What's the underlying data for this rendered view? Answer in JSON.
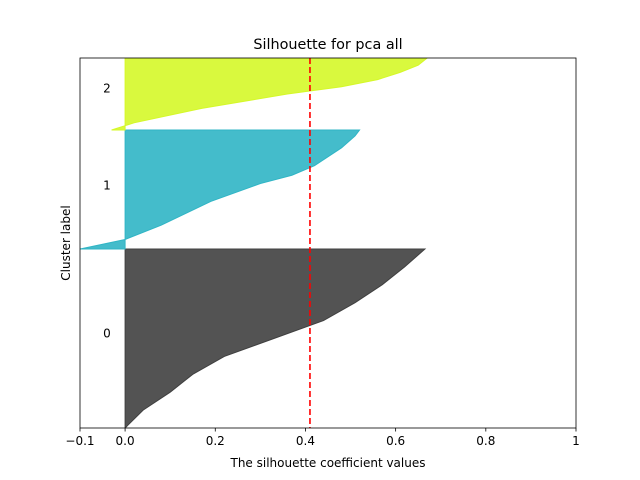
{
  "chart_data": {
    "type": "area",
    "title": "Silhouette for pca all",
    "xlabel": "The silhouette coefficient values",
    "ylabel": "Cluster label",
    "xlim": [
      -0.1,
      1.0
    ],
    "xticks": [
      -0.1,
      0.0,
      0.2,
      0.4,
      0.6,
      0.8,
      1.0
    ],
    "xtick_labels": [
      "−0.1",
      "0.0",
      "0.2",
      "0.4",
      "0.6",
      "0.8",
      "1"
    ],
    "grid": false,
    "average_silhouette": 0.41,
    "average_line_color": "#ff0000",
    "clusters": [
      {
        "label": "0",
        "color": "#404040",
        "sorted_values_profile": [
          [
            0.0,
            0.0
          ],
          [
            0.1,
            0.04
          ],
          [
            0.2,
            0.1
          ],
          [
            0.3,
            0.15
          ],
          [
            0.4,
            0.22
          ],
          [
            0.5,
            0.33
          ],
          [
            0.6,
            0.44
          ],
          [
            0.7,
            0.51
          ],
          [
            0.8,
            0.57
          ],
          [
            0.9,
            0.62
          ],
          [
            1.0,
            0.665
          ]
        ]
      },
      {
        "label": "1",
        "color": "#30b5c5",
        "sorted_values_profile": [
          [
            0.0,
            -0.1
          ],
          [
            0.08,
            0.0
          ],
          [
            0.2,
            0.08
          ],
          [
            0.4,
            0.19
          ],
          [
            0.55,
            0.3
          ],
          [
            0.62,
            0.37
          ],
          [
            0.7,
            0.42
          ],
          [
            0.85,
            0.48
          ],
          [
            0.95,
            0.51
          ],
          [
            1.0,
            0.52
          ]
        ]
      },
      {
        "label": "2",
        "color": "#d5f829",
        "sorted_values_profile": [
          [
            0.0,
            -0.03
          ],
          [
            0.1,
            0.02
          ],
          [
            0.3,
            0.17
          ],
          [
            0.5,
            0.36
          ],
          [
            0.6,
            0.48
          ],
          [
            0.7,
            0.56
          ],
          [
            0.8,
            0.61
          ],
          [
            0.9,
            0.65
          ],
          [
            1.0,
            0.67
          ]
        ]
      }
    ]
  }
}
